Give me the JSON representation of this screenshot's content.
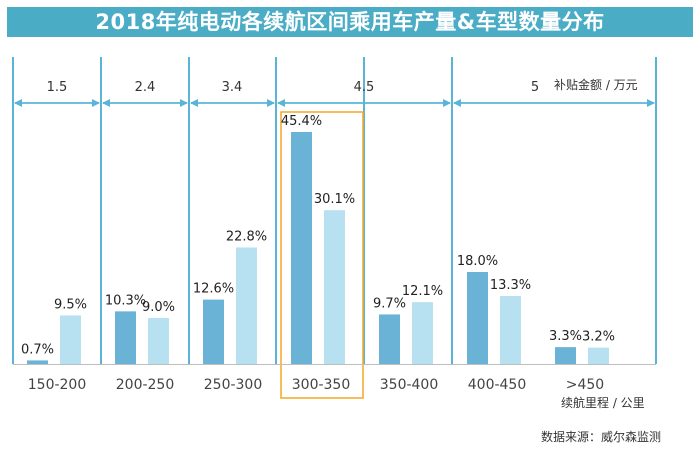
{
  "title": "2018年纯电动各续航区间乘用车产量&车型数量分布",
  "subsidy": {
    "values": [
      "1.5",
      "2.4",
      "3.4",
      "4.5",
      "5"
    ],
    "unit_label": "补贴金额 / 万元"
  },
  "x_unit_label": "续航里程 / 公里",
  "source": "数据来源：威尔森监测",
  "colors": {
    "title_bar": "#4bacc6",
    "series_dark": "#6ab2d6",
    "series_light": "#b7e0f0",
    "arrow": "#5ab4d8",
    "highlight_box": "#f5a623",
    "axis": "#bfbfbf"
  },
  "chart_data": {
    "type": "bar",
    "categories": [
      "150-200",
      "200-250",
      "250-300",
      "300-350",
      "350-400",
      "400-450",
      ">450"
    ],
    "series": [
      {
        "values": [
          0.7,
          10.3,
          12.6,
          45.4,
          9.7,
          18.0,
          3.3
        ]
      },
      {
        "values": [
          9.5,
          9.0,
          22.8,
          30.1,
          12.1,
          13.3,
          3.2
        ]
      }
    ],
    "data_labels": [
      [
        "0.7%",
        "10.3%",
        "12.6%",
        "45.4%",
        "9.7%",
        "18.0%",
        "3.3%"
      ],
      [
        "9.5%",
        "9.0%",
        "22.8%",
        "30.1%",
        "12.1%",
        "13.3%",
        "3.2%"
      ]
    ],
    "highlighted_category": "300-350",
    "ylim": [
      0,
      50
    ],
    "grid": false,
    "legend": "none"
  }
}
